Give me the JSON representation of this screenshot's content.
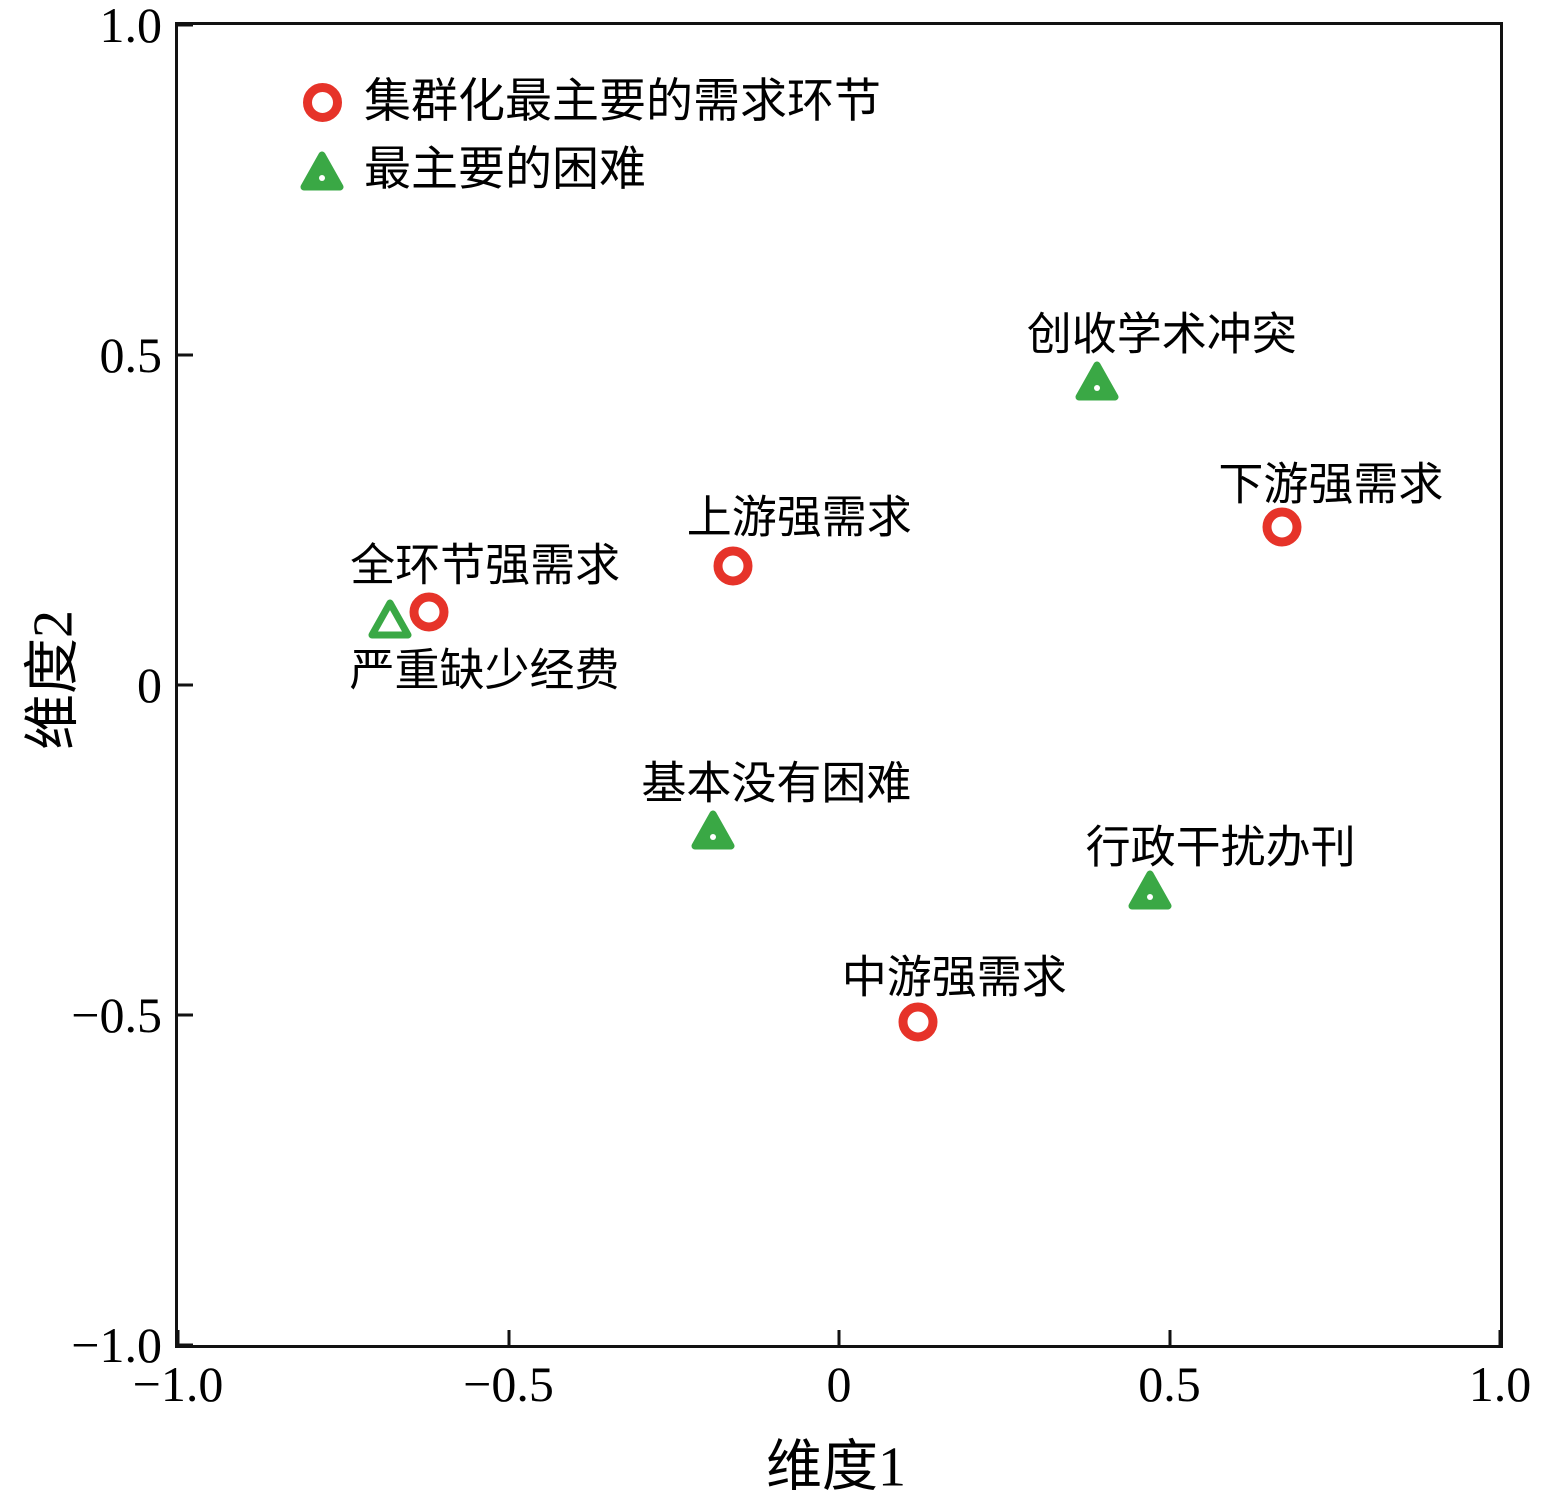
{
  "chart_data": {
    "type": "scatter",
    "title": "",
    "xlabel": "维度1",
    "ylabel": "维度2",
    "xlim": [
      -1.0,
      1.0
    ],
    "ylim": [
      -1.0,
      1.0
    ],
    "grid": false,
    "legend_position": "top-left-inside",
    "x_tick_values": [
      -1.0,
      -0.5,
      0,
      0.5,
      1.0
    ],
    "x_tick_labels": [
      "−1.0",
      "−0.5",
      "0",
      "0.5",
      "1.0"
    ],
    "y_tick_values": [
      -1.0,
      -0.5,
      0,
      0.5,
      1.0
    ],
    "y_tick_labels": [
      "−1.0",
      "−0.5",
      "0",
      "0.5",
      "1.0"
    ],
    "series": [
      {
        "name": "集群化最主要的需求环节",
        "marker": "circle",
        "color": "#e63329",
        "points": [
          {
            "label": "全环节强需求",
            "x": -0.62,
            "y": 0.11,
            "label_offset": [
              56,
              -46
            ]
          },
          {
            "label": "上游强需求",
            "x": -0.16,
            "y": 0.18,
            "label_offset": [
              66,
              -48
            ]
          },
          {
            "label": "下游强需求",
            "x": 0.67,
            "y": 0.24,
            "label_offset": [
              49,
              -42
            ]
          },
          {
            "label": "中游强需求",
            "x": 0.12,
            "y": -0.51,
            "label_offset": [
              36,
              -44
            ]
          }
        ]
      },
      {
        "name": "最主要的困难",
        "marker": "triangle",
        "color": "#3aa845",
        "points": [
          {
            "label": "严重缺少经费",
            "x": -0.68,
            "y": 0.1,
            "label_offset": [
              95,
              52
            ],
            "hollow": true
          },
          {
            "label": "创收学术冲突",
            "x": 0.39,
            "y": 0.46,
            "label_offset": [
              65,
              -46
            ]
          },
          {
            "label": "基本没有困难",
            "x": -0.19,
            "y": -0.22,
            "label_offset": [
              63,
              -46
            ]
          },
          {
            "label": "行政干扰办刊",
            "x": 0.47,
            "y": -0.31,
            "label_offset": [
              71,
              -42
            ]
          }
        ]
      }
    ]
  }
}
